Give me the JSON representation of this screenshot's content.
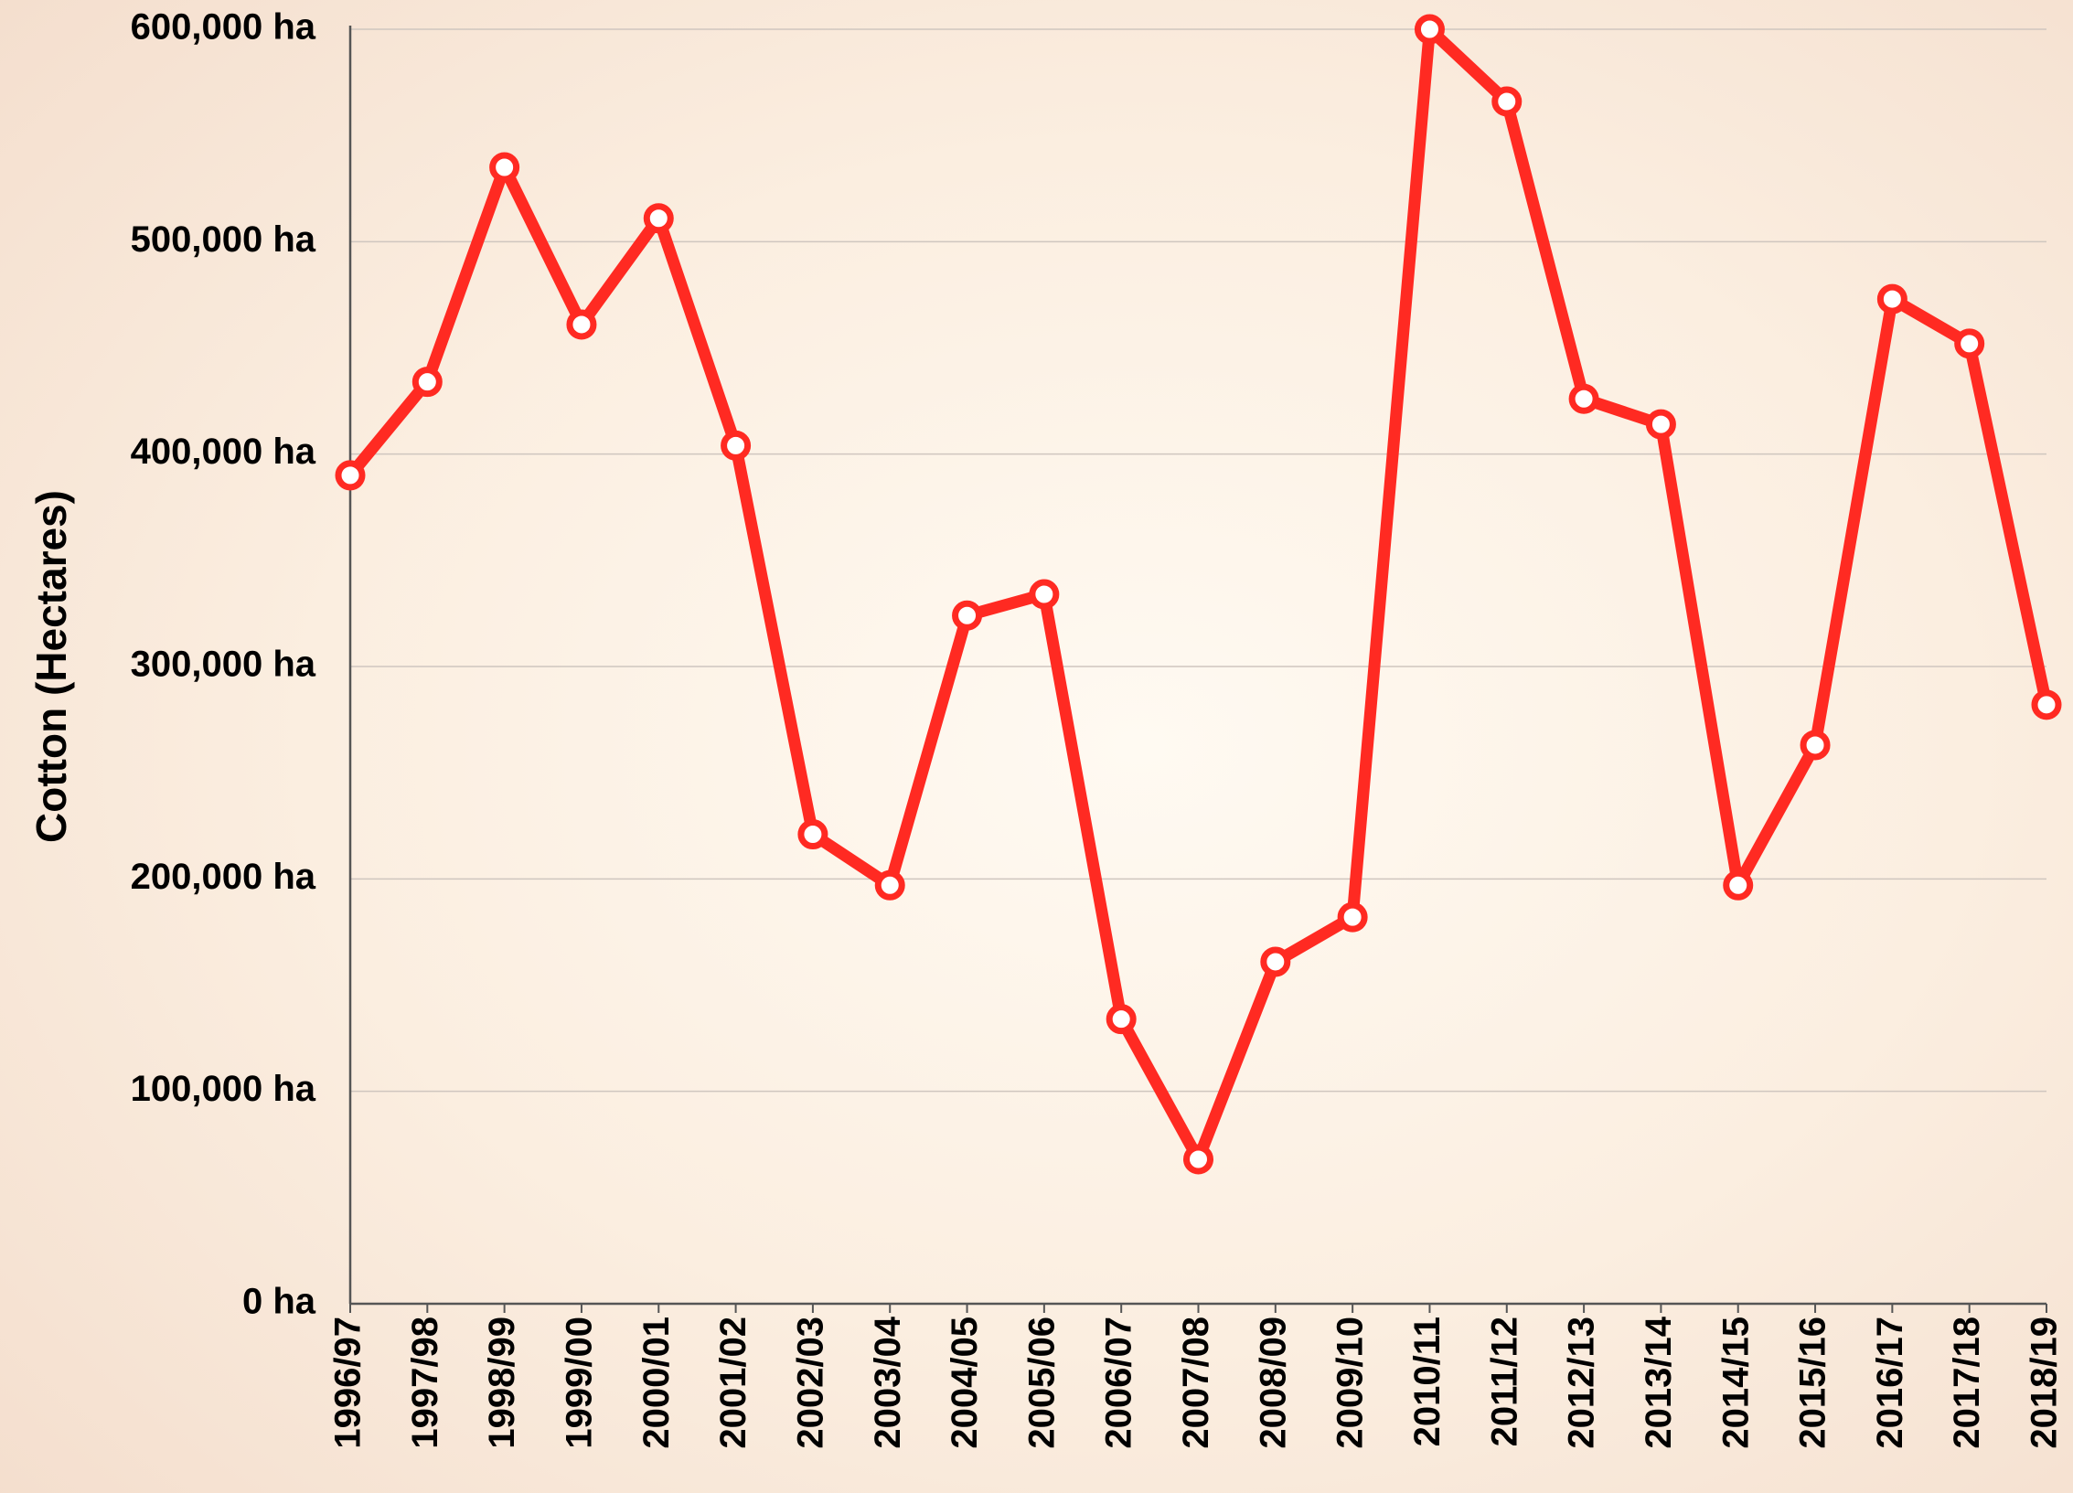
{
  "chart_data": {
    "type": "line",
    "y_label": "Cotton (Hectares)",
    "categories": [
      "1996/97",
      "1997/98",
      "1998/99",
      "1999/00",
      "2000/01",
      "2001/02",
      "2002/03",
      "2003/04",
      "2004/05",
      "2005/06",
      "2006/07",
      "2007/08",
      "2008/09",
      "2009/10",
      "2010/11",
      "2011/12",
      "2012/13",
      "2013/14",
      "2014/15",
      "2015/16",
      "2016/17",
      "2017/18",
      "2018/19"
    ],
    "series": [
      {
        "name": "Cotton",
        "color": "#ff2a22",
        "values": [
          390000,
          434000,
          535000,
          461000,
          511000,
          404000,
          221000,
          197000,
          324000,
          334000,
          134000,
          68000,
          161000,
          182000,
          600000,
          566000,
          426000,
          414000,
          197000,
          263000,
          473000,
          452000,
          282000
        ]
      }
    ],
    "ylim": [
      0,
      600000
    ],
    "yticks": [
      {
        "value": 0,
        "label": "0 ha"
      },
      {
        "value": 100000,
        "label": "100,000 ha"
      },
      {
        "value": 200000,
        "label": "200,000 ha"
      },
      {
        "value": 300000,
        "label": "300,000 ha"
      },
      {
        "value": 400000,
        "label": "400,000 ha"
      },
      {
        "value": 500000,
        "label": "500,000 ha"
      },
      {
        "value": 600000,
        "label": "600,000 ha"
      }
    ],
    "grid": true
  }
}
